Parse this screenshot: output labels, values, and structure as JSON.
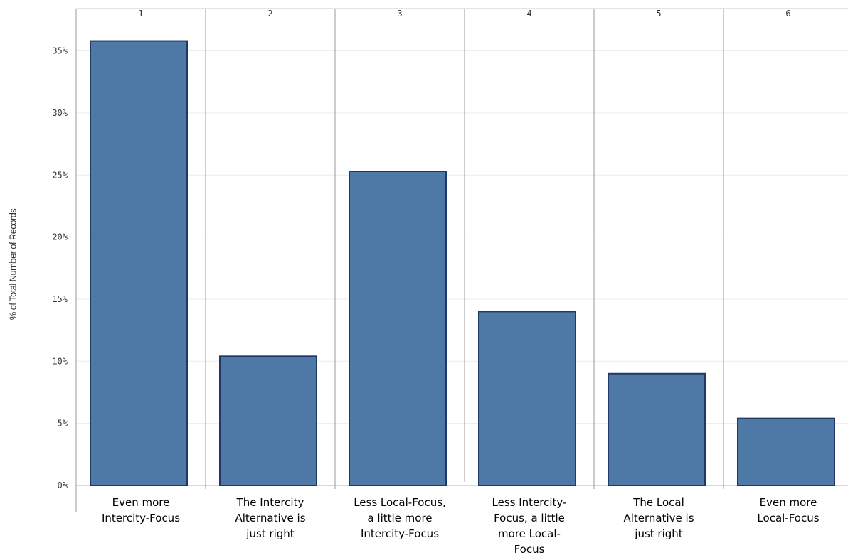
{
  "chart_data": {
    "type": "bar",
    "title": "",
    "ylabel": "% of Total Number of Records",
    "xlabel": "",
    "header_categories": [
      "1",
      "2",
      "3",
      "4",
      "5",
      "6"
    ],
    "categories": [
      [
        "Even more",
        "Intercity-Focus"
      ],
      [
        "The Intercity",
        "Alternative is",
        "just right"
      ],
      [
        "Less Local-Focus,",
        "a little more",
        "Intercity-Focus"
      ],
      [
        "Less Intercity-",
        "Focus, a little",
        "more Local-",
        "Focus"
      ],
      [
        "The Local",
        "Alternative is",
        "just right"
      ],
      [
        "Even more",
        "Local-Focus"
      ]
    ],
    "values": [
      35.8,
      10.4,
      25.3,
      14.0,
      9.0,
      5.4
    ],
    "yticks": [
      "0%",
      "5%",
      "10%",
      "15%",
      "20%",
      "25%",
      "30%",
      "35%"
    ],
    "ylim": [
      0,
      37.5
    ],
    "grid": true,
    "bar_color": "#4e79a7",
    "bar_edge_color": "#1f3864"
  }
}
